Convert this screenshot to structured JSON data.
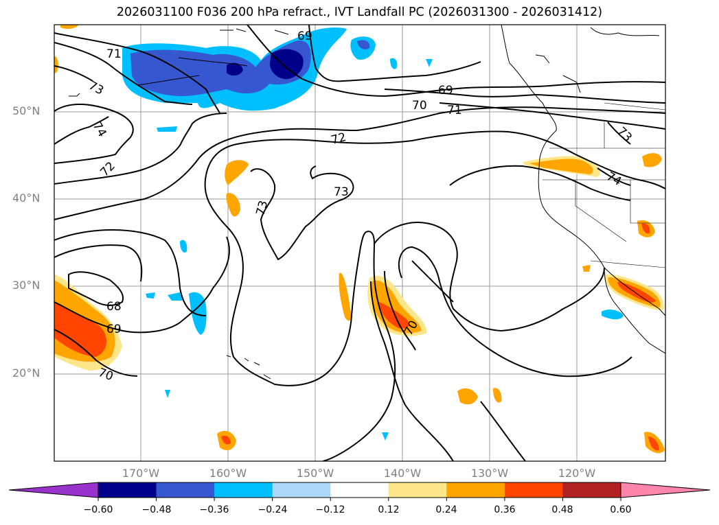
{
  "title": "2026031100 F036 200 hPa refract., IVT Landfall PC (2026031300 - 2026031412)",
  "latitude_labels": [
    "50°N",
    "40°N",
    "30°N",
    "20°N"
  ],
  "longitude_labels": [
    "170°W",
    "160°W",
    "150°W",
    "140°W",
    "130°W",
    "120°W"
  ],
  "contour_labels": [
    "71",
    "73",
    "74",
    "72",
    "69",
    "70",
    "71",
    "72",
    "73",
    "73",
    "68",
    "69",
    "70",
    "73",
    "74",
    "70",
    "69"
  ],
  "colorbar": {
    "tick_labels": [
      "−0.60",
      "−0.48",
      "−0.36",
      "−0.24",
      "−0.12",
      "0.12",
      "0.24",
      "0.36",
      "0.48",
      "0.60"
    ],
    "colors": [
      "#9932cc",
      "#00008b",
      "#3657cf",
      "#00bfff",
      "#add8f6",
      "#ffffff",
      "#fde68a",
      "#ffa500",
      "#ff4500",
      "#b22222",
      "#ff85ad"
    ]
  }
}
